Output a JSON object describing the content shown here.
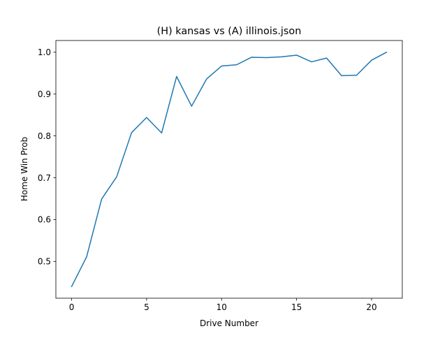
{
  "chart_data": {
    "type": "line",
    "title": "(H) kansas vs (A) illinois.json",
    "xlabel": "Drive Number",
    "ylabel": "Home Win Prob",
    "xlim": [
      -1.05,
      22.05
    ],
    "ylim": [
      0.4121,
      1.028
    ],
    "xticks": [
      0,
      5,
      10,
      15,
      20
    ],
    "xtick_labels": [
      "0",
      "5",
      "10",
      "15",
      "20"
    ],
    "yticks": [
      0.5,
      0.6,
      0.7,
      0.8,
      0.9,
      1.0
    ],
    "ytick_labels": [
      "0.5",
      "0.6",
      "0.7",
      "0.8",
      "0.9",
      "1.0"
    ],
    "grid": false,
    "legend": "none",
    "series": [
      {
        "color": "#1f77b4",
        "x": [
          0,
          1,
          2,
          3,
          4,
          5,
          6,
          7,
          8,
          9,
          10,
          11,
          12,
          13,
          14,
          15,
          16,
          17,
          18,
          19,
          20,
          21
        ],
        "y": [
          0.44,
          0.511,
          0.649,
          0.702,
          0.808,
          0.844,
          0.807,
          0.942,
          0.871,
          0.936,
          0.967,
          0.97,
          0.988,
          0.987,
          0.989,
          0.993,
          0.977,
          0.986,
          0.944,
          0.945,
          0.981,
          1.0
        ]
      }
    ]
  }
}
